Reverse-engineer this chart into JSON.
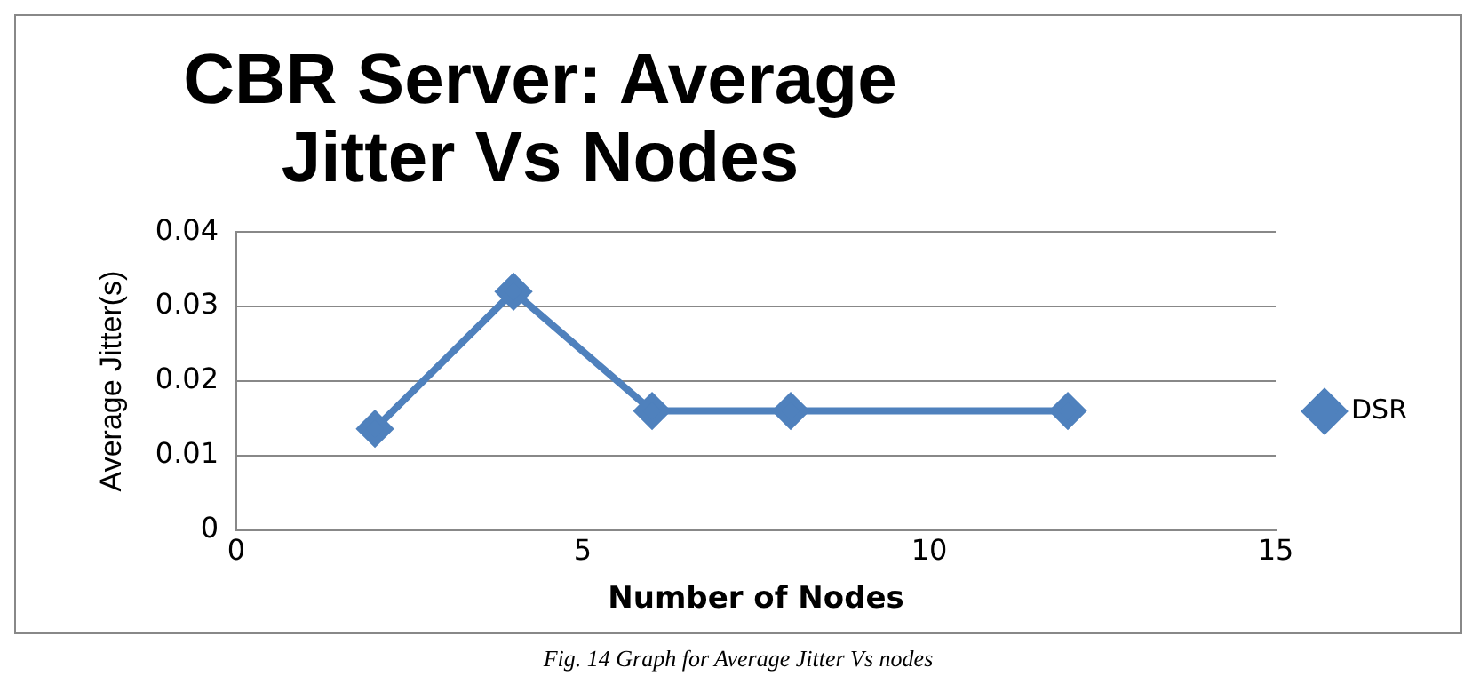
{
  "chart_data": {
    "type": "line",
    "title": "CBR Server: Average Jitter Vs Nodes",
    "xlabel": "Number of Nodes",
    "ylabel": "Average Jitter(s)",
    "x": [
      2,
      4,
      6,
      8,
      12
    ],
    "series": [
      {
        "name": "DSR",
        "color": "#4f81bd",
        "values": [
          0.0136,
          0.032,
          0.016,
          0.016,
          0.016
        ]
      }
    ],
    "xlim": [
      0,
      15
    ],
    "xticks": [
      0,
      5,
      10,
      15
    ],
    "ylim": [
      0,
      0.04
    ],
    "yticks": [
      0,
      0.01,
      0.02,
      0.03,
      0.04
    ],
    "grid": "y",
    "legend": "right",
    "marker": "diamond",
    "line_style": "solid",
    "annotations": [
      "Fig. 14 Graph for Average Jitter Vs nodes"
    ]
  }
}
